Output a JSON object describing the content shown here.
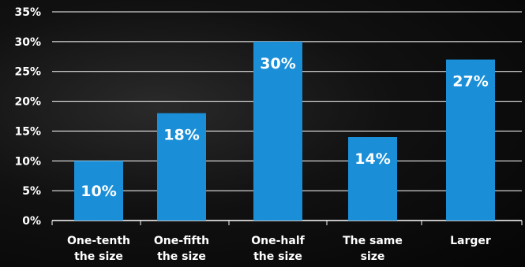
{
  "chart_data": {
    "type": "bar",
    "categories": [
      [
        "One-tenth",
        "the size"
      ],
      [
        "One-fifth",
        "the size"
      ],
      [
        "One-half",
        "the size"
      ],
      [
        "The same",
        "size"
      ],
      [
        "Larger"
      ]
    ],
    "values": [
      10,
      18,
      30,
      14,
      27
    ],
    "value_labels": [
      "10%",
      "18%",
      "30%",
      "14%",
      "27%"
    ],
    "yticks": [
      0,
      5,
      10,
      15,
      20,
      25,
      30,
      35
    ],
    "ytick_labels": [
      "0%",
      "5%",
      "10%",
      "15%",
      "20%",
      "25%",
      "30%",
      "35%"
    ],
    "ylim": [
      0,
      35
    ],
    "bar_color": "#1a8fd8",
    "grid": true
  }
}
